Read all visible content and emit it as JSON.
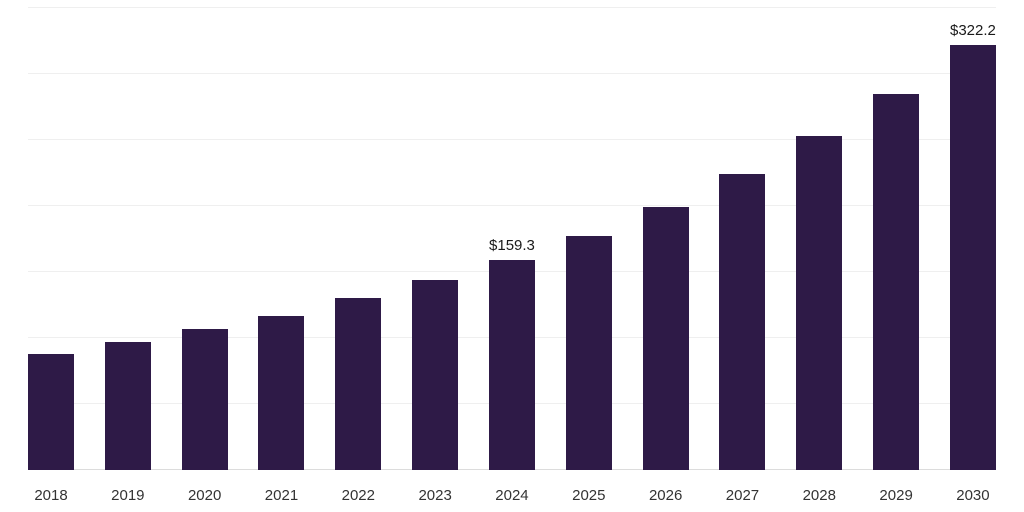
{
  "chart_data": {
    "type": "bar",
    "title": "",
    "xlabel": "",
    "ylabel": "",
    "categories": [
      "2018",
      "2019",
      "2020",
      "2021",
      "2022",
      "2023",
      "2024",
      "2025",
      "2026",
      "2027",
      "2028",
      "2029",
      "2030"
    ],
    "values": [
      88,
      97,
      107,
      117,
      130,
      144,
      159.3,
      177,
      199,
      224,
      253,
      285,
      322.2
    ],
    "data_labels": {
      "2024": "$159.3",
      "2030": "$322.2"
    },
    "ylim": [
      0,
      350
    ],
    "gridline_interval": 50,
    "grid": true,
    "legend_position": "none",
    "bar_color": "#2E1A47",
    "gridline_color": "#efefef",
    "axis_line_color": "#dcdcdc",
    "label_color": "#1a1a1a",
    "tick_label_color": "#333333"
  }
}
